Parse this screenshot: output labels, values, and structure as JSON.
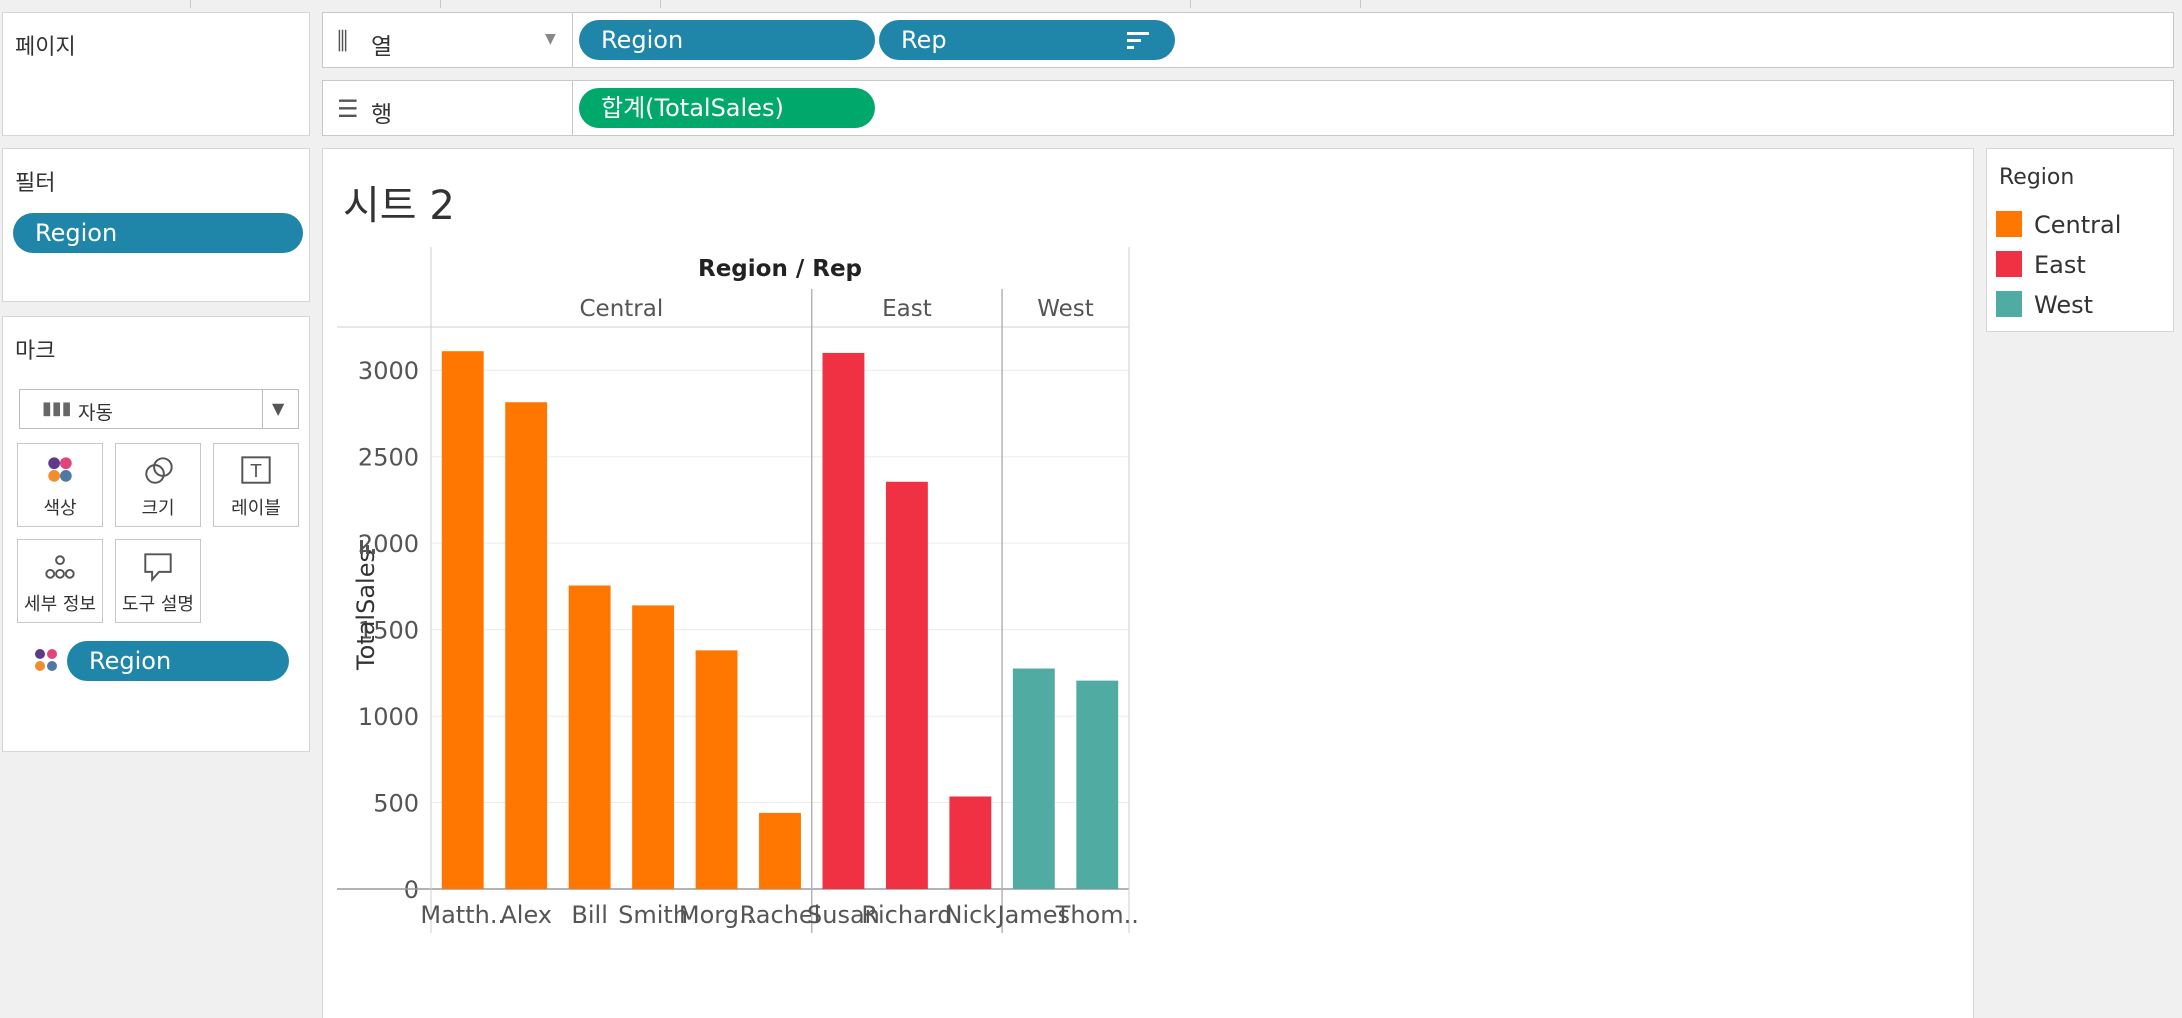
{
  "panels": {
    "pages": {
      "title": "페이지"
    },
    "filters": {
      "title": "필터",
      "pill": "Region"
    },
    "marks": {
      "title": "마크",
      "type": "자동",
      "cards": {
        "color": "색상",
        "size": "크기",
        "label": "레이블",
        "detail": "세부 정보",
        "tooltip": "도구 설명"
      },
      "label_icon_glyph": "T",
      "color_pill": "Region"
    }
  },
  "shelves": {
    "columns": {
      "label": "열",
      "pills": [
        "Region",
        "Rep"
      ]
    },
    "rows": {
      "label": "행",
      "pills": [
        "합계(TotalSales)"
      ]
    }
  },
  "sheet": {
    "title": "시트 2"
  },
  "legend": {
    "title": "Region",
    "items": [
      {
        "name": "Central",
        "color": "#ff7600"
      },
      {
        "name": "East",
        "color": "#f03144"
      },
      {
        "name": "West",
        "color": "#50aba2"
      }
    ]
  },
  "chart_data": {
    "type": "bar",
    "column_header": "Region / Rep",
    "ylabel": "TotalSales",
    "ylim": [
      0,
      3250
    ],
    "yticks": [
      0,
      500,
      1000,
      1500,
      2000,
      2500,
      3000
    ],
    "gridlines": true,
    "groups": [
      {
        "name": "Central",
        "color": "#ff7600",
        "categories": [
          "Matth..",
          "Alex",
          "Bill",
          "Smith",
          "Morg..",
          "Rachel"
        ],
        "values": [
          3110,
          2815,
          1755,
          1640,
          1380,
          440
        ]
      },
      {
        "name": "East",
        "color": "#f03144",
        "categories": [
          "Susan",
          "Richard",
          "Nick"
        ],
        "values": [
          3100,
          2355,
          535
        ]
      },
      {
        "name": "West",
        "color": "#50aba2",
        "categories": [
          "James",
          "Thom.."
        ],
        "values": [
          1275,
          1205
        ]
      }
    ]
  }
}
